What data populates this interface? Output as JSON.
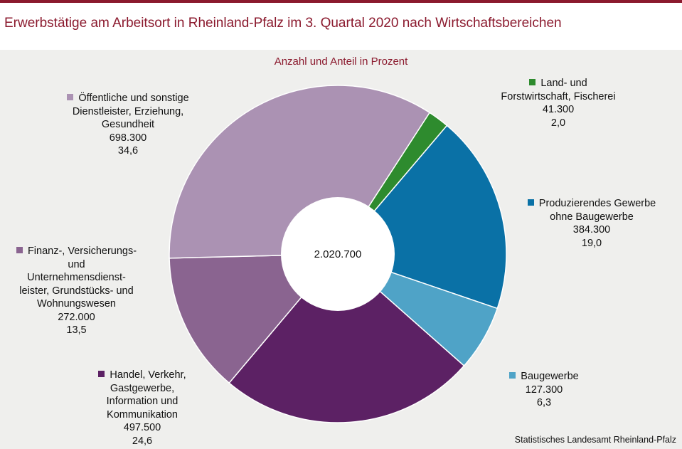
{
  "title": "Erwerbstätige am Arbeitsort in Rheinland-Pfalz im 3. Quartal 2020 nach Wirtschaftsbereichen",
  "source": "Statistisches Landesamt Rheinland-Pfalz",
  "chart_data": {
    "type": "pie",
    "variant": "donut",
    "subtitle": "Anzahl und Anteil in Prozent",
    "total_label": "2.020.700",
    "start_angle_deg": 33,
    "direction": "clockwise",
    "slices": [
      {
        "name_lines": [
          "Land- und",
          "Forstwirtschaft, Fischerei"
        ],
        "count": 41300,
        "count_label": "41.300",
        "percent": 2.0,
        "percent_label": "2,0",
        "color": "#2e8b2e"
      },
      {
        "name_lines": [
          "Produzierendes Gewerbe",
          "ohne Baugewerbe"
        ],
        "count": 384300,
        "count_label": "384.300",
        "percent": 19.0,
        "percent_label": "19,0",
        "color": "#0a71a6"
      },
      {
        "name_lines": [
          "Baugewerbe"
        ],
        "count": 127300,
        "count_label": "127.300",
        "percent": 6.3,
        "percent_label": "6,3",
        "color": "#4fa3c7"
      },
      {
        "name_lines": [
          "Handel, Verkehr,",
          "Gastgewerbe,",
          "Information und",
          "Kommunikation"
        ],
        "count": 497500,
        "count_label": "497.500",
        "percent": 24.6,
        "percent_label": "24,6",
        "color": "#5c2164"
      },
      {
        "name_lines": [
          "Finanz-, Versicherungs-",
          "und",
          "Unternehmensdienst-",
          "leister, Grundstücks- und",
          "Wohnungswesen"
        ],
        "count": 272000,
        "count_label": "272.000",
        "percent": 13.5,
        "percent_label": "13,5",
        "color": "#8a6490"
      },
      {
        "name_lines": [
          "Öffentliche und sonstige",
          "Dienstleister, Erziehung,",
          "Gesundheit"
        ],
        "count": 698300,
        "count_label": "698.300",
        "percent": 34.6,
        "percent_label": "34,6",
        "color": "#ab92b3"
      }
    ]
  }
}
